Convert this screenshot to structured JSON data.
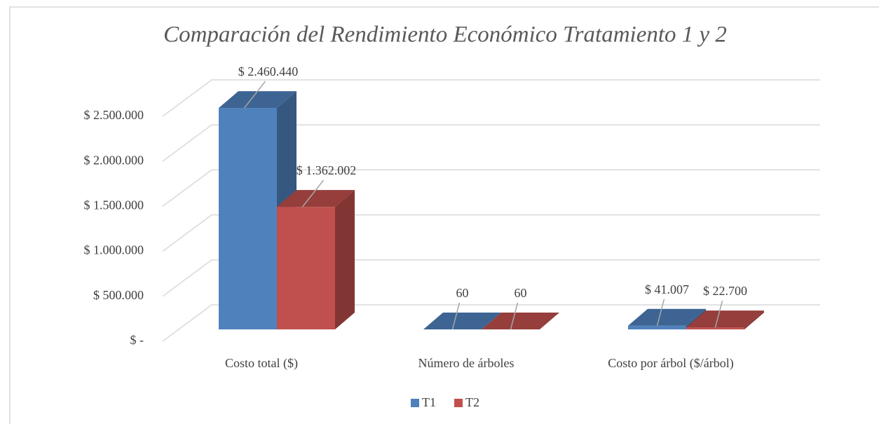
{
  "chart_data": {
    "type": "bar3d",
    "title": "Comparación del Rendimiento Económico Tratamiento 1 y 2",
    "categories": [
      "Costo total ($)",
      "Número de árboles",
      "Costo por árbol ($/árbol)"
    ],
    "series": [
      {
        "name": "T1",
        "color": "#4f81bd",
        "values": [
          2460440,
          60,
          41007
        ],
        "value_labels": [
          "$ 2.460.440",
          "60",
          "$ 41.007"
        ]
      },
      {
        "name": "T2",
        "color": "#c0504d",
        "values": [
          1362002,
          60,
          22700
        ],
        "value_labels": [
          "$ 1.362.002",
          "60",
          "$ 22.700"
        ]
      }
    ],
    "ylim": [
      0,
      2500000
    ],
    "yticks": [
      {
        "value": 0,
        "label": "$ -"
      },
      {
        "value": 500000,
        "label": "$ 500.000"
      },
      {
        "value": 1000000,
        "label": "$ 1.000.000"
      },
      {
        "value": 1500000,
        "label": "$ 1.500.000"
      },
      {
        "value": 2000000,
        "label": "$ 2.000.000"
      },
      {
        "value": 2500000,
        "label": "$ 2.500.000"
      }
    ],
    "grid": true,
    "legend": "bottom"
  }
}
